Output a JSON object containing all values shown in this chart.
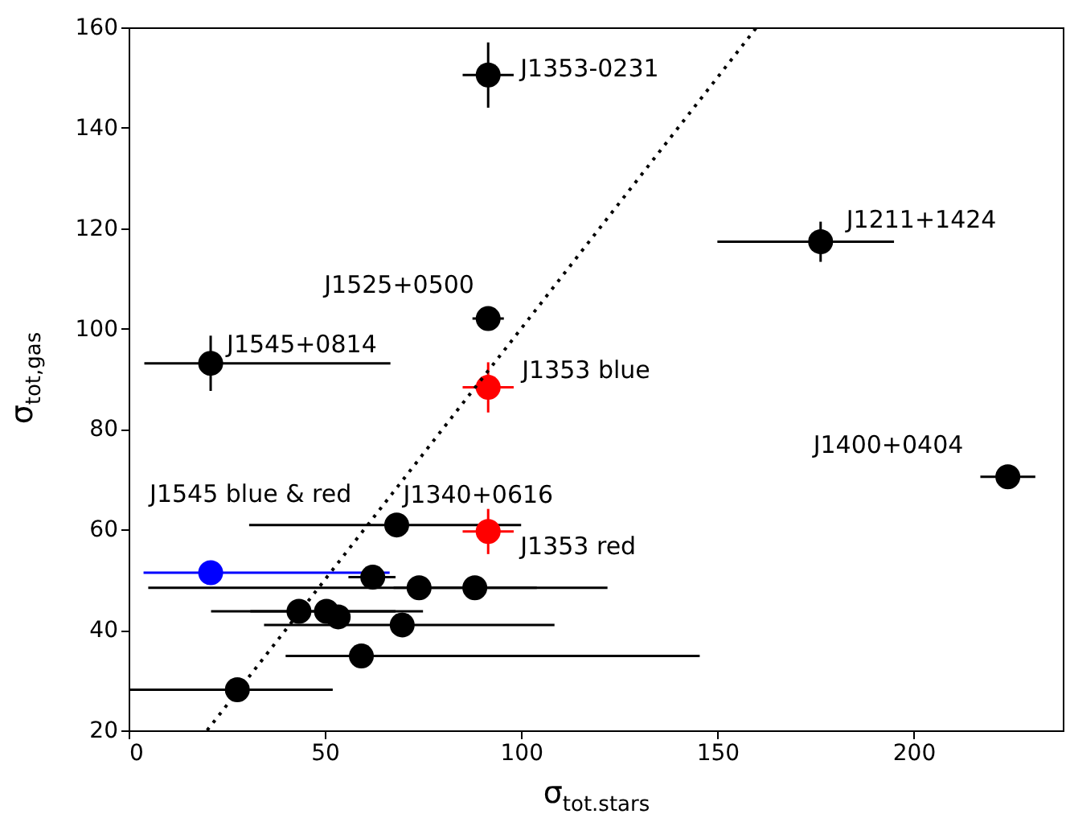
{
  "chart_data": {
    "type": "scatter",
    "xlabel": "σ$_{tot.stars}$",
    "ylabel": "σ$_{tot,gas}$",
    "xlim": [
      0,
      238
    ],
    "ylim": [
      20,
      160
    ],
    "xticks": [
      0,
      50,
      100,
      150,
      200
    ],
    "yticks": [
      20,
      40,
      60,
      80,
      100,
      120,
      140,
      160
    ],
    "marker": "circle",
    "grid": false,
    "series": [
      {
        "type": "scatter",
        "color": "#000000",
        "x": [
          91.6,
          176.3,
          91.6,
          20.9,
          224,
          68.3,
          62.2,
          74,
          88.2,
          43.4,
          50.4,
          53.4,
          69.7,
          59.3,
          27.7
        ],
        "values": [
          150.5,
          117.3,
          102,
          93.1,
          70.5,
          60.9,
          50.5,
          48.4,
          48.4,
          43.7,
          43.7,
          42.6,
          41,
          34.8,
          28.1
        ],
        "xerrors": [
          6.5,
          [
            150,
            195
          ],
          4,
          [
            4,
            66.7
          ],
          7,
          [
            30.7,
            100
          ],
          [
            56,
            68
          ],
          [
            5,
            122
          ],
          [
            67.5,
            104
          ],
          [
            31,
            68
          ],
          [
            21,
            75
          ],
          null,
          [
            34.5,
            108.5
          ],
          [
            40,
            145.5
          ],
          [
            0.3,
            52
          ]
        ],
        "errors": [
          6.5,
          4,
          null,
          5.5,
          null,
          null,
          null,
          null,
          null,
          null,
          null,
          null,
          null,
          null,
          null
        ]
      },
      {
        "type": "scatter",
        "color": "#ff0000",
        "x": [
          91.6,
          91.6
        ],
        "values": [
          88.3,
          59.6
        ],
        "xerrors": [
          6.5,
          6.5
        ],
        "errors": [
          5,
          4.5
        ]
      },
      {
        "type": "scatter",
        "color": "#0000ff",
        "x": [
          20.9
        ],
        "values": [
          51.4
        ],
        "xerrors": [
          [
            3.8,
            66.5
          ]
        ]
      },
      {
        "type": "line",
        "color": "#000000",
        "x": [
          20,
          160
        ],
        "values": [
          20,
          160
        ],
        "line_style": "dotted",
        "marker": "none"
      }
    ],
    "annotations": [
      {
        "text": "J1353-0231",
        "x": 91.6,
        "y": 150.5
      },
      {
        "text": "J1211+1424",
        "x": 176.3,
        "y": 117.3
      },
      {
        "text": "J1525+0500",
        "x": 91.6,
        "y": 102
      },
      {
        "text": "J1545+0814",
        "x": 20.9,
        "y": 93.1
      },
      {
        "text": "J1353 blue",
        "x": 91.6,
        "y": 88.3
      },
      {
        "text": "J1400+0404",
        "x": 224,
        "y": 70.5
      },
      {
        "text": "J1545 blue & red",
        "x": 20.9,
        "y": 51.4
      },
      {
        "text": "J1340+0616",
        "x": 68.3,
        "y": 60.9
      },
      {
        "text": "J1353 red",
        "x": 91.6,
        "y": 59.6
      }
    ]
  }
}
